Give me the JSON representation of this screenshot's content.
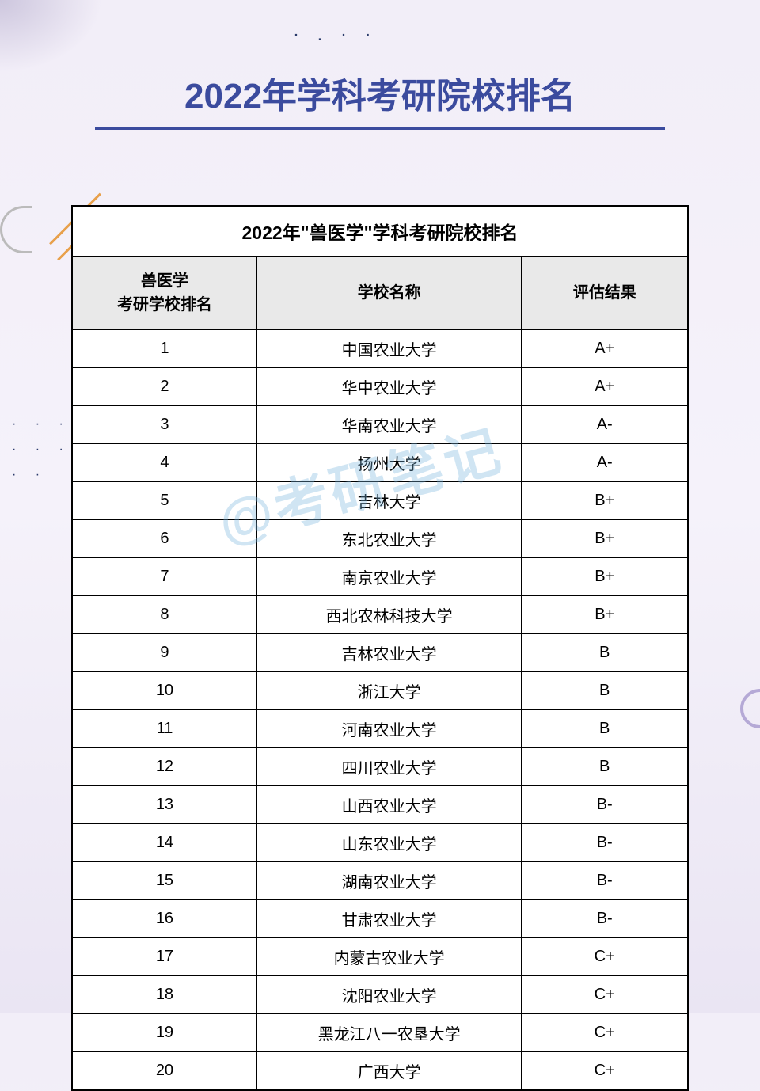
{
  "page_title": "2022年学科考研院校排名",
  "table_title": "2022年\"兽医学\"学科考研院校排名",
  "columns": {
    "rank": "兽医学\n考研学校排名",
    "name": "学校名称",
    "eval": "评估结果"
  },
  "rows": [
    {
      "rank": "1",
      "name": "中国农业大学",
      "eval": "A+"
    },
    {
      "rank": "2",
      "name": "华中农业大学",
      "eval": "A+"
    },
    {
      "rank": "3",
      "name": "华南农业大学",
      "eval": "A-"
    },
    {
      "rank": "4",
      "name": "扬州大学",
      "eval": "A-"
    },
    {
      "rank": "5",
      "name": "吉林大学",
      "eval": "B+"
    },
    {
      "rank": "6",
      "name": "东北农业大学",
      "eval": "B+"
    },
    {
      "rank": "7",
      "name": "南京农业大学",
      "eval": "B+"
    },
    {
      "rank": "8",
      "name": "西北农林科技大学",
      "eval": "B+"
    },
    {
      "rank": "9",
      "name": "吉林农业大学",
      "eval": "B"
    },
    {
      "rank": "10",
      "name": "浙江大学",
      "eval": "B"
    },
    {
      "rank": "11",
      "name": "河南农业大学",
      "eval": "B"
    },
    {
      "rank": "12",
      "name": "四川农业大学",
      "eval": "B"
    },
    {
      "rank": "13",
      "name": "山西农业大学",
      "eval": "B-"
    },
    {
      "rank": "14",
      "name": "山东农业大学",
      "eval": "B-"
    },
    {
      "rank": "15",
      "name": "湖南农业大学",
      "eval": "B-"
    },
    {
      "rank": "16",
      "name": "甘肃农业大学",
      "eval": "B-"
    },
    {
      "rank": "17",
      "name": "内蒙古农业大学",
      "eval": "C+"
    },
    {
      "rank": "18",
      "name": "沈阳农业大学",
      "eval": "C+"
    },
    {
      "rank": "19",
      "name": "黑龙江八一农垦大学",
      "eval": "C+"
    },
    {
      "rank": "20",
      "name": "广西大学",
      "eval": "C+"
    }
  ],
  "watermark": "@考研笔记",
  "colors": {
    "title": "#3b4b9e",
    "header_bg": "#e9e9e9",
    "border": "#000000",
    "bg_start": "#f2eef8",
    "bg_end": "#eae5f3",
    "accent_orange": "#e8a04a",
    "watermark": "rgba(120,180,220,0.35)"
  }
}
